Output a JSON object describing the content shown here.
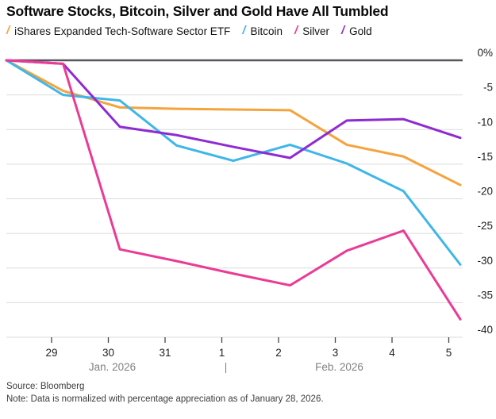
{
  "title": "Software Stocks, Bitcoin, Silver and Gold Have All Tumbled",
  "legend_mark_glyph": "/",
  "chart_data": {
    "type": "line",
    "x_dates": [
      "Jan 28",
      "Jan 29",
      "Jan 30",
      "Jan 31",
      "Feb 1",
      "Feb 2",
      "Feb 3",
      "Feb 4",
      "Feb 5"
    ],
    "x_tick_labels": [
      "29",
      "30",
      "31",
      "1",
      "2",
      "3",
      "4",
      "5"
    ],
    "x_group_labels": [
      {
        "label": "Jan. 2026",
        "tick_index": 1
      },
      {
        "label": "|",
        "tick_index": 3
      },
      {
        "label": "Feb. 2026",
        "tick_index": 5
      }
    ],
    "y_tick_labels": [
      "0%",
      "-5",
      "-10",
      "-15",
      "-20",
      "-25",
      "-30",
      "-35",
      "-40"
    ],
    "ylim": [
      -40,
      0
    ],
    "y_step": -5,
    "grid": true,
    "legend_position": "top",
    "series": [
      {
        "name": "iShares Expanded Tech-Software Sector ETF",
        "color": "#F5A33C",
        "values": [
          0,
          -4.4,
          -6.8,
          -7.0,
          -7.1,
          -7.2,
          -12.2,
          -13.9,
          -18.0
        ]
      },
      {
        "name": "Bitcoin",
        "color": "#3FB6E8",
        "values": [
          0,
          -5.0,
          -5.8,
          -12.3,
          -14.5,
          -12.2,
          -14.9,
          -18.9,
          -29.5
        ]
      },
      {
        "name": "Silver",
        "color": "#EA3B96",
        "values": [
          0,
          -0.5,
          -27.3,
          -29.0,
          -30.8,
          -32.5,
          -27.5,
          -24.6,
          -37.4
        ]
      },
      {
        "name": "Gold",
        "color": "#8F2BD1",
        "values": [
          0,
          -0.5,
          -9.6,
          -10.8,
          -12.5,
          -14.1,
          -8.7,
          -8.5,
          -11.2
        ]
      }
    ],
    "title": "Software Stocks, Bitcoin, Silver and Gold Have All Tumbled",
    "xlabel": "",
    "ylabel": ""
  },
  "footer": {
    "source": "Source: Bloomberg",
    "note": "Note: Data is normalized with percentage appreciation as of January 28, 2026."
  }
}
